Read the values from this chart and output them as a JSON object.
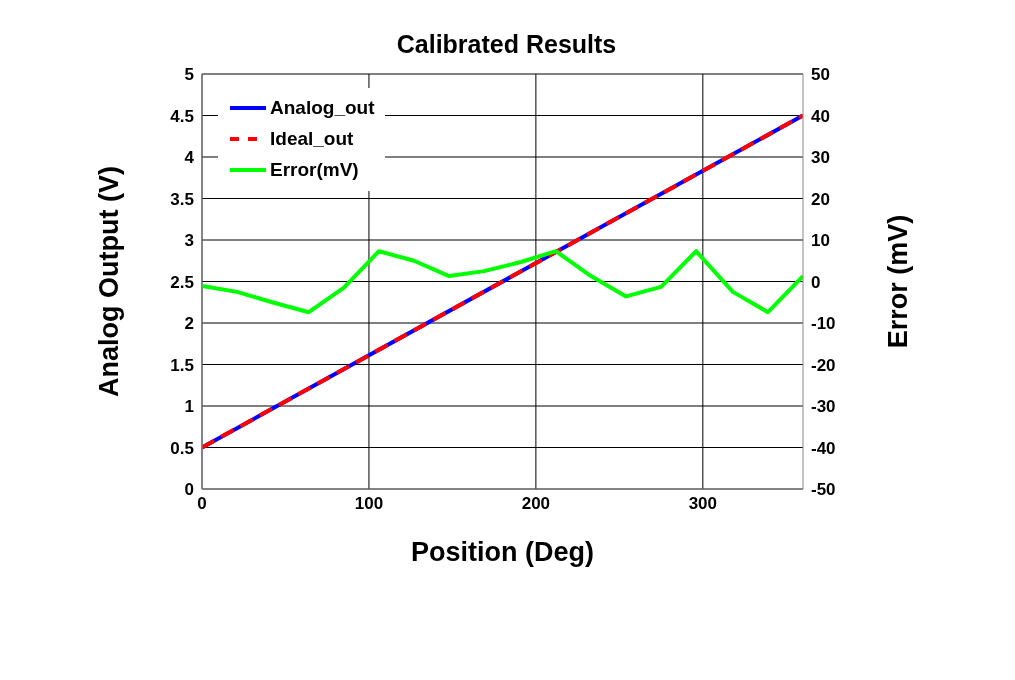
{
  "chart_data": {
    "type": "line",
    "title": "Calibrated Results",
    "xlabel": "Position (Deg)",
    "ylabel": "Analog Output (V)",
    "y2label": "Error (mV)",
    "xlim": [
      0,
      360
    ],
    "xticks": [
      0,
      100,
      200,
      300
    ],
    "ylim": [
      0,
      5
    ],
    "yticks": [
      0,
      0.5,
      1,
      1.5,
      2,
      2.5,
      3,
      3.5,
      4,
      4.5,
      5
    ],
    "y2lim": [
      -50,
      50
    ],
    "y2ticks": [
      -50,
      -40,
      -30,
      -20,
      -10,
      0,
      10,
      20,
      30,
      40,
      50
    ],
    "grid": true,
    "legend": "top left",
    "series": [
      {
        "name": "Analog_out",
        "color": "#0000ff",
        "x": [
          0,
          360
        ],
        "values": [
          0.5,
          4.5
        ],
        "line_style": "solid"
      },
      {
        "name": "Ideal_out",
        "color": "#ff0000",
        "x": [
          0,
          360
        ],
        "values": [
          0.5,
          4.5
        ],
        "line_style": "dashed"
      },
      {
        "name": "Error(mV)",
        "color": "#00ff00",
        "axis": "y2",
        "line_style": "solid",
        "x": [
          0,
          21,
          42,
          64,
          85,
          106,
          127,
          148,
          169,
          191,
          212,
          233,
          254,
          275,
          296,
          318,
          339,
          360
        ],
        "values": [
          -1.1,
          -2.5,
          -5,
          -7.4,
          -1.5,
          7.3,
          5,
          1.3,
          2.5,
          4.7,
          7.3,
          1.3,
          -3.6,
          -1.3,
          7.3,
          -2.5,
          -7.4,
          1.3
        ]
      }
    ]
  }
}
